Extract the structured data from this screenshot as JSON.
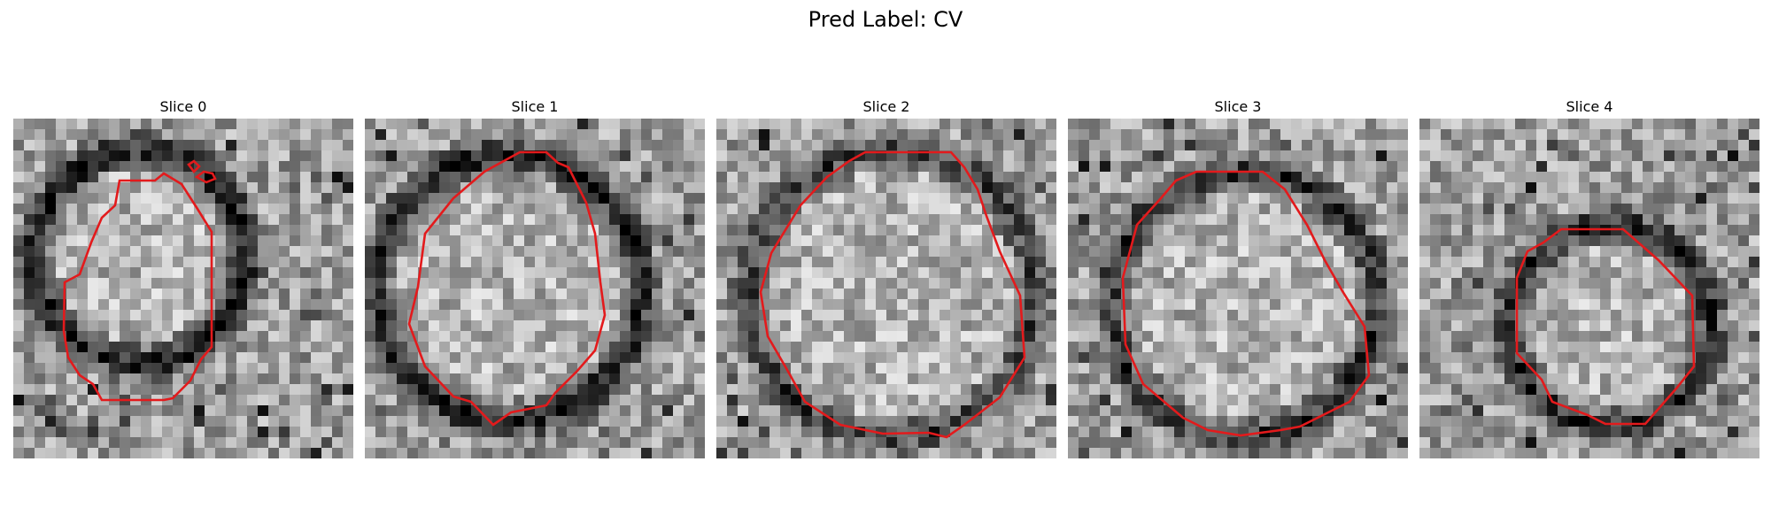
{
  "figure": {
    "title": "Pred Label: CV"
  },
  "panels": [
    {
      "title": "Slice 0"
    },
    {
      "title": "Slice 1"
    },
    {
      "title": "Slice 2"
    },
    {
      "title": "Slice 3"
    },
    {
      "title": "Slice 4"
    }
  ],
  "colors": {
    "background": "#ffffff",
    "contour": "#e31a1c",
    "colormap": "gray"
  }
}
